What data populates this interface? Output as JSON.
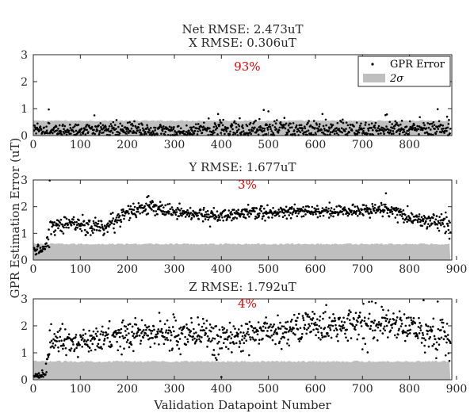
{
  "figure": {
    "ylabel": "GPR Estimation Error (uT)",
    "xlabel": "Validation Datapoint Number",
    "suptitle": "Net RMSE: 2.473uT",
    "colors": {
      "points": "#000000",
      "band": "#bfbfbf",
      "percent": "#e60000",
      "axis": "#262626"
    }
  },
  "legend": {
    "items": [
      {
        "label": "GPR Error",
        "marker": "point"
      },
      {
        "label": "2σ",
        "marker": "patch"
      }
    ],
    "location": "top-right"
  },
  "chart_data": [
    {
      "type": "scatter",
      "title": "X RMSE: 0.306uT",
      "annotation": "93%",
      "xlim": [
        0,
        890
      ],
      "ylim": [
        0,
        3
      ],
      "xticks": [
        0,
        100,
        200,
        300,
        400,
        500,
        600,
        700,
        800
      ],
      "yticks": [
        0,
        1,
        2,
        3
      ],
      "series": [
        {
          "name": "GPR Error",
          "kind": "points",
          "n": 887,
          "segments": [
            [
              0,
              0.2,
              0.15
            ],
            [
              150,
              0.25,
              0.15
            ],
            [
              300,
              0.22,
              0.15
            ],
            [
              480,
              0.3,
              0.18
            ],
            [
              620,
              0.25,
              0.18
            ],
            [
              780,
              0.28,
              0.18
            ],
            [
              887,
              0.3,
              0.2
            ]
          ],
          "outliers": [
            [
              33,
              0.97
            ],
            [
              130,
              0.75
            ],
            [
              490,
              0.95
            ],
            [
              500,
              0.9
            ],
            [
              615,
              0.8
            ],
            [
              860,
              0.98
            ],
            [
              880,
              0.7
            ]
          ]
        },
        {
          "name": "2σ",
          "kind": "band",
          "level": 0.55,
          "variation": 0.02
        }
      ]
    },
    {
      "type": "scatter",
      "title": "Y RMSE: 1.677uT",
      "annotation": "3%",
      "xlim": [
        0,
        890
      ],
      "ylim": [
        0,
        3
      ],
      "xticks": [
        0,
        100,
        200,
        300,
        400,
        500,
        600,
        700,
        800,
        900
      ],
      "yticks": [
        0,
        1,
        2,
        3
      ],
      "series": [
        {
          "name": "GPR Error",
          "kind": "points",
          "n": 887,
          "segments": [
            [
              0,
              0.3,
              0.1
            ],
            [
              25,
              0.4,
              0.1
            ],
            [
              35,
              1.2,
              0.2
            ],
            [
              60,
              1.4,
              0.15
            ],
            [
              100,
              1.35,
              0.15
            ],
            [
              150,
              1.2,
              0.2
            ],
            [
              190,
              1.7,
              0.15
            ],
            [
              240,
              2.0,
              0.15
            ],
            [
              300,
              1.8,
              0.12
            ],
            [
              400,
              1.65,
              0.12
            ],
            [
              460,
              1.8,
              0.12
            ],
            [
              550,
              1.8,
              0.12
            ],
            [
              650,
              1.85,
              0.12
            ],
            [
              750,
              1.9,
              0.12
            ],
            [
              800,
              1.6,
              0.15
            ],
            [
              887,
              1.4,
              0.2
            ]
          ],
          "outliers": [
            [
              35,
              3.0
            ],
            [
              245,
              2.4
            ],
            [
              750,
              2.5
            ],
            [
              885,
              0.8
            ]
          ]
        },
        {
          "name": "2σ",
          "kind": "band",
          "level": 0.6,
          "variation": 0.03
        }
      ]
    },
    {
      "type": "scatter",
      "title": "Z RMSE: 1.792uT",
      "annotation": "4%",
      "xlim": [
        0,
        890
      ],
      "ylim": [
        0,
        3
      ],
      "xticks": [
        0,
        100,
        200,
        300,
        400,
        500,
        600,
        700,
        800,
        900
      ],
      "yticks": [
        0,
        1,
        2,
        3
      ],
      "series": [
        {
          "name": "GPR Error",
          "kind": "points",
          "n": 887,
          "segments": [
            [
              0,
              0.1,
              0.05
            ],
            [
              25,
              0.15,
              0.08
            ],
            [
              35,
              1.5,
              0.25
            ],
            [
              60,
              1.5,
              0.2
            ],
            [
              100,
              1.4,
              0.2
            ],
            [
              190,
              1.7,
              0.3
            ],
            [
              300,
              1.7,
              0.3
            ],
            [
              400,
              1.5,
              0.3
            ],
            [
              470,
              1.8,
              0.3
            ],
            [
              600,
              1.9,
              0.3
            ],
            [
              700,
              2.1,
              0.3
            ],
            [
              800,
              1.9,
              0.3
            ],
            [
              887,
              1.4,
              0.3
            ]
          ],
          "outliers": [
            [
              720,
              2.9
            ],
            [
              830,
              2.95
            ],
            [
              860,
              2.9
            ],
            [
              400,
              0.1
            ],
            [
              885,
              0.7
            ]
          ]
        },
        {
          "name": "2σ",
          "kind": "band",
          "level": 0.68,
          "variation": 0.03
        }
      ]
    }
  ]
}
